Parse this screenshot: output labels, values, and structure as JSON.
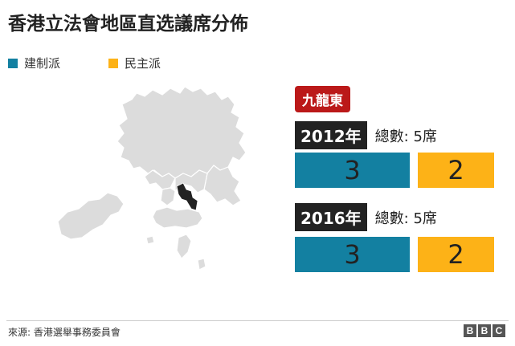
{
  "title": "香港立法會地區直选議席分佈",
  "legend": [
    {
      "label": "建制派",
      "color": "#1380a1"
    },
    {
      "label": "民主派",
      "color": "#fdb217"
    }
  ],
  "region": {
    "label": "九龍東"
  },
  "chart_data": {
    "type": "bar",
    "series_names": [
      "建制派",
      "民主派"
    ],
    "colors": [
      "#1380a1",
      "#fdb217"
    ],
    "groups": [
      {
        "year": "2012年",
        "total_label": "總數: 5席",
        "values": [
          3,
          2
        ]
      },
      {
        "year": "2016年",
        "total_label": "總數: 5席",
        "values": [
          3,
          2
        ]
      }
    ]
  },
  "footer": {
    "source": "來源: 香港選舉事務委員會",
    "logo_letters": [
      "B",
      "B",
      "C"
    ]
  }
}
